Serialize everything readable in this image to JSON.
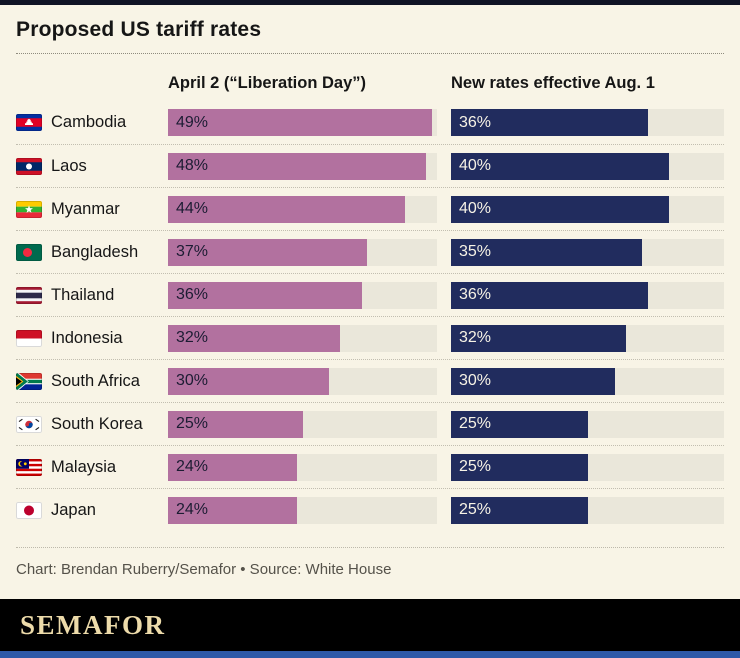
{
  "title": "Proposed US tariff rates",
  "chart_data": {
    "type": "bar",
    "title": "Proposed US tariff rates",
    "series_labels": [
      "April 2 (“Liberation Day”)",
      "New rates effective Aug. 1"
    ],
    "scale_max": 50,
    "unit": "%",
    "rows": [
      {
        "country": "Cambodia",
        "flag": "cambodia-flag-icon",
        "april2": 49,
        "april2_label": "49%",
        "aug1": 36,
        "aug1_label": "36%"
      },
      {
        "country": "Laos",
        "flag": "laos-flag-icon",
        "april2": 48,
        "april2_label": "48%",
        "aug1": 40,
        "aug1_label": "40%"
      },
      {
        "country": "Myanmar",
        "flag": "myanmar-flag-icon",
        "april2": 44,
        "april2_label": "44%",
        "aug1": 40,
        "aug1_label": "40%"
      },
      {
        "country": "Bangladesh",
        "flag": "bangladesh-flag-icon",
        "april2": 37,
        "april2_label": "37%",
        "aug1": 35,
        "aug1_label": "35%"
      },
      {
        "country": "Thailand",
        "flag": "thailand-flag-icon",
        "april2": 36,
        "april2_label": "36%",
        "aug1": 36,
        "aug1_label": "36%"
      },
      {
        "country": "Indonesia",
        "flag": "indonesia-flag-icon",
        "april2": 32,
        "april2_label": "32%",
        "aug1": 32,
        "aug1_label": "32%"
      },
      {
        "country": "South Africa",
        "flag": "south-africa-flag-icon",
        "april2": 30,
        "april2_label": "30%",
        "aug1": 30,
        "aug1_label": "30%"
      },
      {
        "country": "South Korea",
        "flag": "south-korea-flag-icon",
        "april2": 25,
        "april2_label": "25%",
        "aug1": 25,
        "aug1_label": "25%"
      },
      {
        "country": "Malaysia",
        "flag": "malaysia-flag-icon",
        "april2": 24,
        "april2_label": "24%",
        "aug1": 25,
        "aug1_label": "25%"
      },
      {
        "country": "Japan",
        "flag": "japan-flag-icon",
        "april2": 24,
        "april2_label": "24%",
        "aug1": 25,
        "aug1_label": "25%"
      }
    ]
  },
  "colors": {
    "april2_bar": "#b2719f",
    "aug1_bar": "#212c5e",
    "bar_track": "#eae7da",
    "background": "#f8f4e6",
    "top_accent": "#101325",
    "bottom_accent": "#2d59a8",
    "wordmark_text": "#eddbaa"
  },
  "footer": {
    "credit": "Chart: Brendan Ruberry/Semafor • Source: White House"
  },
  "brand": {
    "wordmark": "SEMAFOR"
  }
}
